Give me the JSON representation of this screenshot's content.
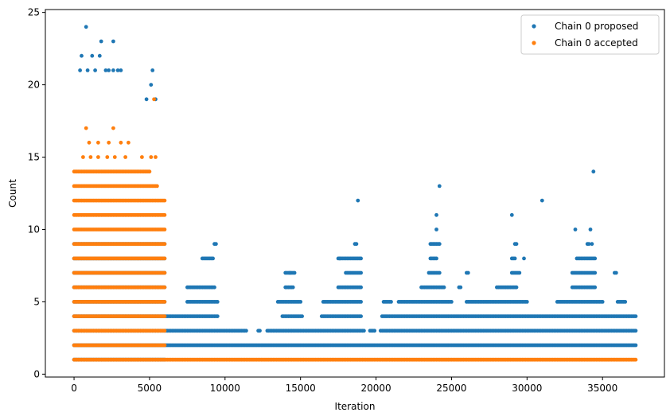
{
  "chart_data": {
    "type": "scatter",
    "title": "",
    "xlabel": "Iteration",
    "ylabel": "Count",
    "xlim": [
      -1900,
      39100
    ],
    "ylim": [
      -0.2,
      25.2
    ],
    "xticks": [
      0,
      5000,
      10000,
      15000,
      20000,
      25000,
      30000,
      35000
    ],
    "yticks": [
      0,
      5,
      10,
      15,
      20,
      25
    ],
    "xtick_labels": [
      "0",
      "5000",
      "10000",
      "15000",
      "20000",
      "25000",
      "30000",
      "35000"
    ],
    "ytick_labels": [
      "0",
      "5",
      "10",
      "15",
      "20",
      "25"
    ],
    "grid": false,
    "legend_position": "top-right",
    "colors": {
      "proposed": "#1f77b4",
      "accepted": "#ff7f0e"
    },
    "series": [
      {
        "name": "Chain 0 proposed",
        "color": "#1f77b4",
        "bands": [
          {
            "y": 1,
            "x": [
              0,
              6000
            ]
          },
          {
            "y": 2,
            "x": [
              0,
              37200
            ]
          },
          {
            "y": 3,
            "x": [
              0,
              37200
            ],
            "gaps": [
              [
                11500,
                12100
              ],
              [
                12400,
                12700
              ],
              [
                19300,
                19500
              ],
              [
                20000,
                20200
              ]
            ]
          },
          {
            "y": 4,
            "x": [
              0,
              37200
            ],
            "gaps": [
              [
                9600,
                13700
              ],
              [
                15200,
                16300
              ],
              [
                19100,
                20300
              ]
            ]
          },
          {
            "y": 5,
            "x": [
              0,
              6000
            ],
            "extra": [
              [
                7500,
                9500
              ],
              [
                13500,
                15000
              ],
              [
                16500,
                19000
              ],
              [
                20500,
                21000
              ],
              [
                21500,
                25000
              ],
              [
                26000,
                30000
              ],
              [
                32000,
                35000
              ],
              [
                36000,
                36500
              ]
            ]
          },
          {
            "y": 6,
            "x": [
              0,
              6000
            ],
            "extra": [
              [
                7500,
                9300
              ],
              [
                14000,
                14500
              ],
              [
                17500,
                19000
              ],
              [
                23000,
                24500
              ],
              [
                25500,
                25600
              ],
              [
                28000,
                29300
              ],
              [
                33000,
                34500
              ]
            ]
          },
          {
            "y": 7,
            "x": [
              0,
              6000
            ],
            "extra": [
              [
                14000,
                14600
              ],
              [
                18000,
                19000
              ],
              [
                23500,
                24200
              ],
              [
                26000,
                26100
              ],
              [
                29000,
                29500
              ],
              [
                33000,
                34500
              ],
              [
                35800,
                35900
              ]
            ]
          },
          {
            "y": 8,
            "x": [
              0,
              6000
            ],
            "extra": [
              [
                8500,
                9200
              ],
              [
                17500,
                19000
              ],
              [
                23600,
                24000
              ],
              [
                29000,
                29200
              ],
              [
                33300,
                34500
              ]
            ]
          },
          {
            "y": 9,
            "x": [
              0,
              6000
            ],
            "extra": [
              [
                9300,
                9400
              ],
              [
                18600,
                18700
              ],
              [
                23600,
                24200
              ],
              [
                29200,
                29300
              ],
              [
                34000,
                34100
              ]
            ]
          }
        ],
        "x": [
          800,
          1800,
          2600,
          500,
          1200,
          1700,
          2300,
          2900,
          5200,
          400,
          900,
          1400,
          2100,
          2600,
          3100,
          5100,
          4800,
          5400,
          18800,
          24200,
          31000,
          34400,
          24000,
          29000,
          33200,
          34200,
          14300,
          17600,
          24000,
          29800,
          34300
        ],
        "y": [
          24,
          23,
          23,
          22,
          22,
          22,
          21,
          21,
          21,
          21,
          21,
          21,
          21,
          21,
          21,
          20,
          19,
          19,
          12,
          13,
          12,
          14,
          11,
          11,
          10,
          10,
          7,
          8,
          10,
          8,
          9
        ]
      },
      {
        "name": "Chain 0 accepted",
        "color": "#ff7f0e",
        "bands": [
          {
            "y": 1,
            "x": [
              0,
              37200
            ]
          },
          {
            "y": 2,
            "x": [
              0,
              6000
            ]
          },
          {
            "y": 3,
            "x": [
              0,
              6000
            ]
          },
          {
            "y": 4,
            "x": [
              0,
              6000
            ]
          },
          {
            "y": 5,
            "x": [
              0,
              6000
            ]
          },
          {
            "y": 6,
            "x": [
              0,
              6000
            ]
          },
          {
            "y": 7,
            "x": [
              0,
              6000
            ]
          },
          {
            "y": 8,
            "x": [
              0,
              6000
            ]
          },
          {
            "y": 9,
            "x": [
              0,
              6000
            ]
          },
          {
            "y": 10,
            "x": [
              0,
              6000
            ]
          },
          {
            "y": 11,
            "x": [
              0,
              6000
            ]
          },
          {
            "y": 12,
            "x": [
              0,
              6000
            ]
          },
          {
            "y": 13,
            "x": [
              0,
              5500
            ]
          },
          {
            "y": 14,
            "x": [
              0,
              5000
            ]
          }
        ],
        "x": [
          600,
          1100,
          1600,
          2200,
          2700,
          3400,
          4500,
          5100,
          5400,
          800,
          2600,
          1600,
          3100,
          1000,
          3600,
          2300,
          5300
        ],
        "y": [
          15,
          15,
          15,
          15,
          15,
          15,
          15,
          15,
          15,
          17,
          17,
          16,
          16,
          16,
          16,
          16,
          19
        ]
      }
    ]
  }
}
